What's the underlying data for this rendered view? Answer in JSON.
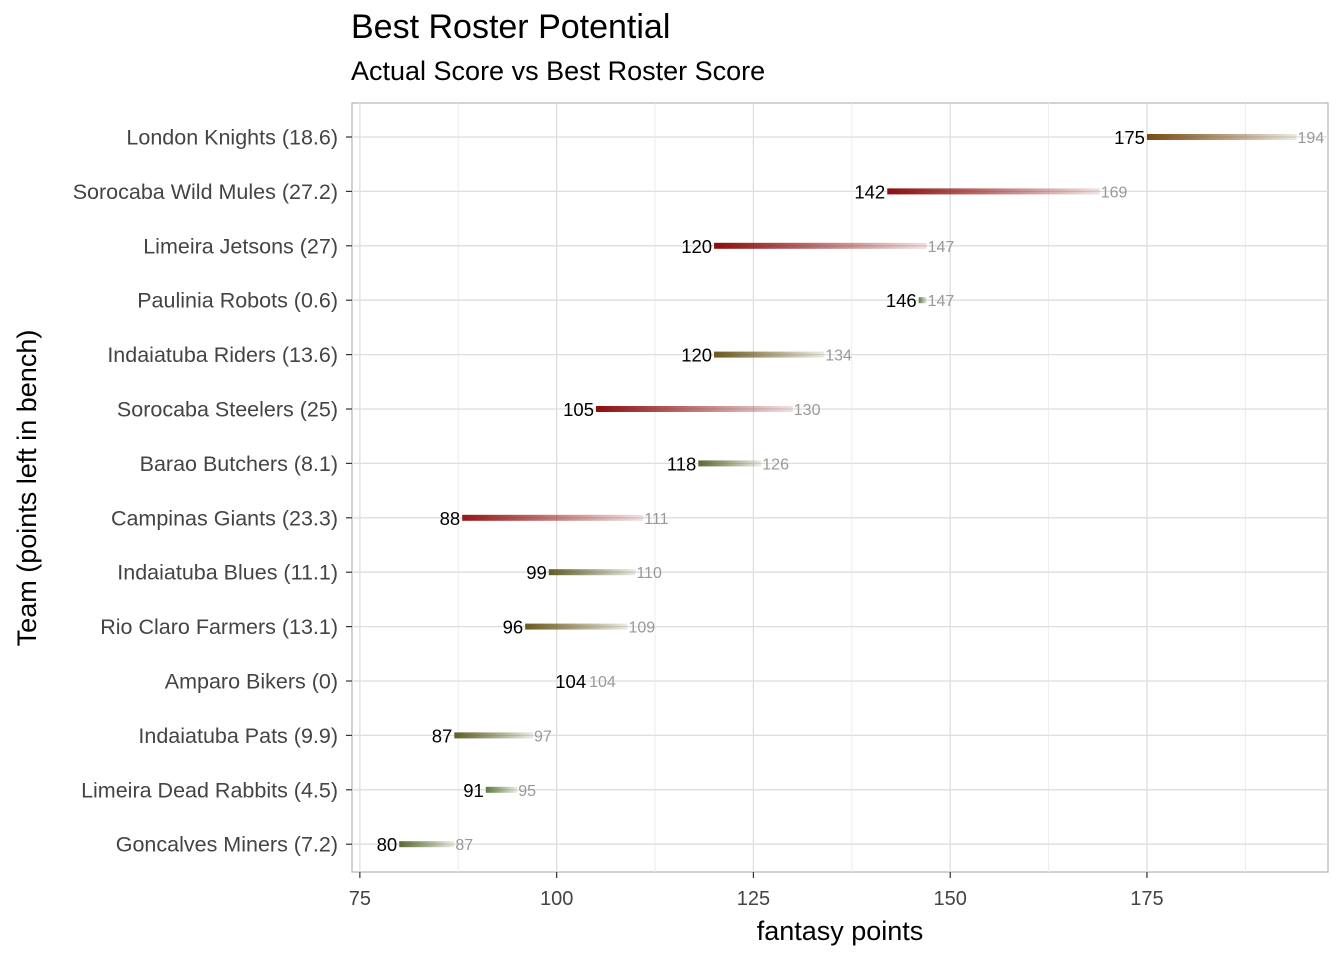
{
  "chart_data": {
    "type": "dumbbell",
    "title": "Best Roster Potential",
    "subtitle": "Actual Score vs Best Roster Score",
    "xlabel": "fantasy points",
    "ylabel": "Team (points left in bench)",
    "xlim": [
      74,
      198
    ],
    "xticks": [
      75,
      100,
      125,
      150,
      175
    ],
    "grid": true,
    "teams": [
      {
        "label": "London Knights (18.6)",
        "actual": 175,
        "best": 194,
        "color": "#7a4a14"
      },
      {
        "label": "Sorocaba Wild Mules (27.2)",
        "actual": 142,
        "best": 169,
        "color": "#8b0e0e"
      },
      {
        "label": "Limeira Jetsons (27)",
        "actual": 120,
        "best": 147,
        "color": "#8b0e0e"
      },
      {
        "label": "Paulinia Robots (0.6)",
        "actual": 146,
        "best": 147,
        "color": "#5e7a40"
      },
      {
        "label": "Indaiatuba Riders (13.6)",
        "actual": 120,
        "best": 134,
        "color": "#6b5a1e"
      },
      {
        "label": "Sorocaba Steelers (25)",
        "actual": 105,
        "best": 130,
        "color": "#8b0e0e"
      },
      {
        "label": "Barao Butchers (8.1)",
        "actual": 118,
        "best": 126,
        "color": "#5a6a32"
      },
      {
        "label": "Campinas Giants (23.3)",
        "actual": 88,
        "best": 111,
        "color": "#951818"
      },
      {
        "label": "Indaiatuba Blues (11.1)",
        "actual": 99,
        "best": 110,
        "color": "#5f5e28"
      },
      {
        "label": "Rio Claro Farmers (13.1)",
        "actual": 96,
        "best": 109,
        "color": "#6b5a1e"
      },
      {
        "label": "Amparo Bikers (0)",
        "actual": 104,
        "best": 104,
        "color": "#5e7a40"
      },
      {
        "label": "Indaiatuba Pats (9.9)",
        "actual": 87,
        "best": 97,
        "color": "#5f5e28"
      },
      {
        "label": "Limeira Dead Rabbits (4.5)",
        "actual": 91,
        "best": 95,
        "color": "#5e7a40"
      },
      {
        "label": "Goncalves Miners (7.2)",
        "actual": 80,
        "best": 87,
        "color": "#5a6a32"
      }
    ]
  }
}
